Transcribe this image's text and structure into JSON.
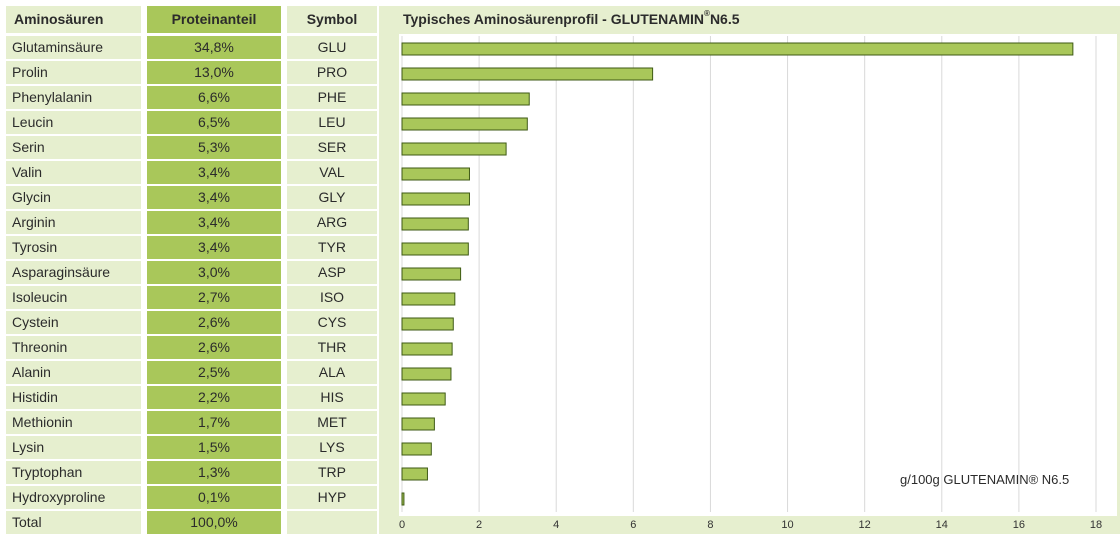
{
  "table": {
    "headers": {
      "name": "Aminosäuren",
      "share": "Proteinanteil",
      "symbol": "Symbol"
    },
    "rows": [
      {
        "name": "Glutaminsäure",
        "share": "34,8%",
        "symbol": "GLU"
      },
      {
        "name": "Prolin",
        "share": "13,0%",
        "symbol": "PRO"
      },
      {
        "name": "Phenylalanin",
        "share": "6,6%",
        "symbol": "PHE"
      },
      {
        "name": "Leucin",
        "share": "6,5%",
        "symbol": "LEU"
      },
      {
        "name": "Serin",
        "share": "5,3%",
        "symbol": "SER"
      },
      {
        "name": "Valin",
        "share": "3,4%",
        "symbol": "VAL"
      },
      {
        "name": "Glycin",
        "share": "3,4%",
        "symbol": "GLY"
      },
      {
        "name": "Arginin",
        "share": "3,4%",
        "symbol": "ARG"
      },
      {
        "name": "Tyrosin",
        "share": "3,4%",
        "symbol": "TYR"
      },
      {
        "name": "Asparaginsäure",
        "share": "3,0%",
        "symbol": "ASP"
      },
      {
        "name": "Isoleucin",
        "share": "2,7%",
        "symbol": "ISO"
      },
      {
        "name": "Cystein",
        "share": "2,6%",
        "symbol": "CYS"
      },
      {
        "name": "Threonin",
        "share": "2,6%",
        "symbol": "THR"
      },
      {
        "name": "Alanin",
        "share": "2,5%",
        "symbol": "ALA"
      },
      {
        "name": "Histidin",
        "share": "2,2%",
        "symbol": "HIS"
      },
      {
        "name": "Methionin",
        "share": "1,7%",
        "symbol": "MET"
      },
      {
        "name": "Lysin",
        "share": "1,5%",
        "symbol": "LYS"
      },
      {
        "name": "Tryptophan",
        "share": "1,3%",
        "symbol": "TRP"
      },
      {
        "name": "Hydroxyproline",
        "share": "0,1%",
        "symbol": "HYP"
      }
    ],
    "total": {
      "name": "Total",
      "share": "100,0%",
      "symbol": ""
    }
  },
  "colors": {
    "bar": "#a9c75a",
    "bar_border": "#3e5a14",
    "panel": "#e6efcf",
    "grid": "#d9d9d9"
  },
  "chart_data": {
    "type": "bar",
    "orientation": "horizontal",
    "title_main": "Typisches Aminosäurenprofil  - GLUTENAMIN",
    "title_sup": "®",
    "title_tail": "N6.5",
    "annotation": "g/100g GLUTENAMIN® N6.5",
    "categories": [
      "GLU",
      "PRO",
      "PHE",
      "LEU",
      "SER",
      "VAL",
      "GLY",
      "ARG",
      "TYR",
      "ASP",
      "ISO",
      "CYS",
      "THR",
      "ALA",
      "HIS",
      "MET",
      "LYS",
      "TRP",
      "HYP"
    ],
    "values": [
      17.4,
      6.5,
      3.3,
      3.25,
      2.7,
      1.75,
      1.75,
      1.72,
      1.72,
      1.52,
      1.37,
      1.33,
      1.3,
      1.27,
      1.12,
      0.84,
      0.76,
      0.66,
      0.05
    ],
    "xlim": [
      0,
      18
    ],
    "xticks": [
      0,
      2,
      4,
      6,
      8,
      10,
      12,
      14,
      16,
      18
    ],
    "grid": true,
    "legend": "none"
  }
}
